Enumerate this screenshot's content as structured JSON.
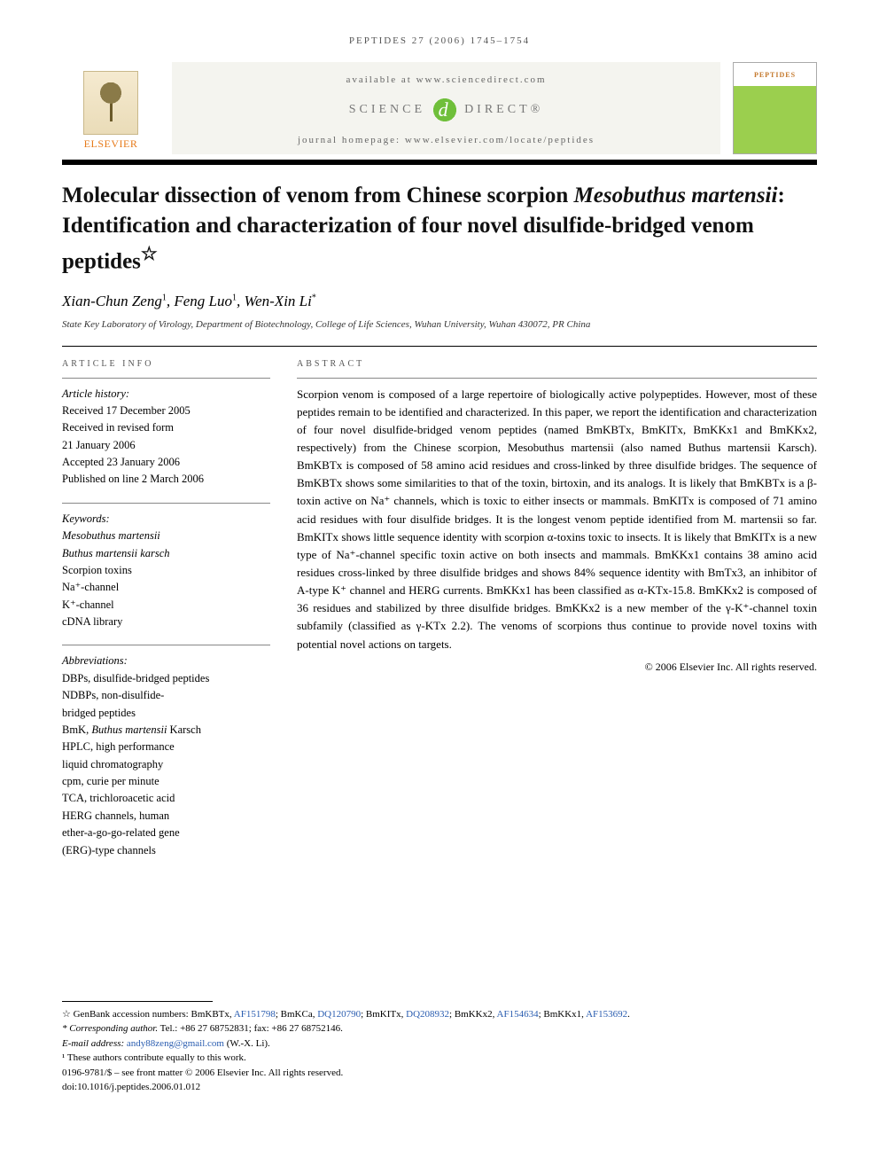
{
  "running_head": "PEPTIDES 27 (2006) 1745–1754",
  "masthead": {
    "publisher_name": "ELSEVIER",
    "available_line": "available at www.sciencedirect.com",
    "sd_left": "SCIENCE",
    "sd_glyph": "d",
    "sd_right": "DIRECT®",
    "homepage_label": "journal homepage: www.elsevier.com/locate/peptides",
    "journal_cover_title": "PEPTIDES"
  },
  "title": {
    "prefix": "Molecular dissection of venom from Chinese scorpion ",
    "species": "Mesobuthus martensii",
    "suffix": ": Identification and characterization of four novel disulfide-bridged venom peptides",
    "note_marker": "☆"
  },
  "authors": {
    "a1_name": "Xian-Chun Zeng",
    "a1_sup": "1",
    "a2_name": "Feng Luo",
    "a2_sup": "1",
    "a3_name": "Wen-Xin Li",
    "a3_sup": "*"
  },
  "affiliation": "State Key Laboratory of Virology, Department of Biotechnology, College of Life Sciences, Wuhan University, Wuhan 430072, PR China",
  "article_info": {
    "heading": "ARTICLE INFO",
    "history_label": "Article history:",
    "received": "Received 17 December 2005",
    "revised1": "Received in revised form",
    "revised2": "21 January 2006",
    "accepted": "Accepted 23 January 2006",
    "published": "Published on line 2 March 2006"
  },
  "keywords": {
    "label": "Keywords:",
    "k1": "Mesobuthus martensii",
    "k2": "Buthus martensii karsch",
    "k3": "Scorpion toxins",
    "k4": "Na⁺-channel",
    "k5": "K⁺-channel",
    "k6": "cDNA library"
  },
  "abbreviations": {
    "label": "Abbreviations:",
    "a1": "DBPs, disulfide-bridged peptides",
    "a2": "NDBPs, non-disulfide-",
    "a3": "bridged peptides",
    "a4_pre": "BmK, ",
    "a4_it": "Buthus martensii",
    "a4_post": " Karsch",
    "a5": "HPLC, high performance",
    "a6": "liquid chromatography",
    "a7": "cpm, curie per minute",
    "a8": "TCA, trichloroacetic acid",
    "a9": "HERG channels, human",
    "a10": "ether-a-go-go-related gene",
    "a11": "(ERG)-type channels"
  },
  "abstract": {
    "heading": "ABSTRACT",
    "body": "Scorpion venom is composed of a large repertoire of biologically active polypeptides. However, most of these peptides remain to be identified and characterized. In this paper, we report the identification and characterization of four novel disulfide-bridged venom peptides (named BmKBTx, BmKITx, BmKKx1 and BmKKx2, respectively) from the Chinese scorpion, Mesobuthus martensii (also named Buthus martensii Karsch). BmKBTx is composed of 58 amino acid residues and cross-linked by three disulfide bridges. The sequence of BmKBTx shows some similarities to that of the toxin, birtoxin, and its analogs. It is likely that BmKBTx is a β-toxin active on Na⁺ channels, which is toxic to either insects or mammals. BmKITx is composed of 71 amino acid residues with four disulfide bridges. It is the longest venom peptide identified from M. martensii so far. BmKITx shows little sequence identity with scorpion α-toxins toxic to insects. It is likely that BmKITx is a new type of Na⁺-channel specific toxin active on both insects and mammals. BmKKx1 contains 38 amino acid residues cross-linked by three disulfide bridges and shows 84% sequence identity with BmTx3, an inhibitor of A-type K⁺ channel and HERG currents. BmKKx1 has been classified as α-KTx-15.8. BmKKx2 is composed of 36 residues and stabilized by three disulfide bridges. BmKKx2 is a new member of the γ-K⁺-channel toxin subfamily (classified as γ-KTx 2.2). The venoms of scorpions thus continue to provide novel toxins with potential novel actions on targets.",
    "copyright": "© 2006 Elsevier Inc. All rights reserved."
  },
  "footnotes": {
    "star_pre": "☆ GenBank accession numbers: BmKBTx, ",
    "acc1": "AF151798",
    "sep1": "; BmKCa, ",
    "acc2": "DQ120790",
    "sep2": "; BmKITx, ",
    "acc3": "DQ208932",
    "sep3": "; BmKKx2, ",
    "acc4": "AF154634",
    "sep4": "; BmKKx1, ",
    "acc5": "AF153692",
    "end": ".",
    "corr_label": "* Corresponding author.",
    "corr_tel": " Tel.: +86 27 68752831; fax: +86 27 68752146.",
    "email_label": "E-mail address: ",
    "email": "andy88zeng@gmail.com",
    "email_who": " (W.-X. Li).",
    "equal": "¹ These authors contribute equally to this work.",
    "issn": "0196-9781/$ – see front matter © 2006 Elsevier Inc. All rights reserved.",
    "doi": "doi:10.1016/j.peptides.2006.01.012"
  }
}
